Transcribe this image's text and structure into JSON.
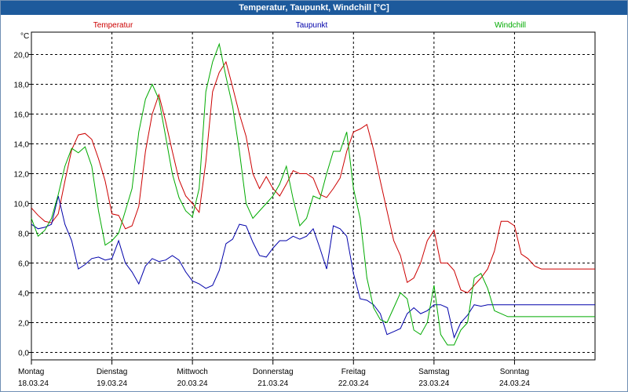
{
  "chart_data": {
    "type": "line",
    "title": "Temperatur, Taupunkt, Windchill [°C]",
    "ylabel": "°C",
    "xlabel": "",
    "ylim": [
      -0.5,
      21.5
    ],
    "yticks": [
      "0,0",
      "2,0",
      "4,0",
      "6,0",
      "8,0",
      "10,0",
      "12,0",
      "14,0",
      "16,0",
      "18,0",
      "20,0"
    ],
    "ytick_values": [
      0,
      2,
      4,
      6,
      8,
      10,
      12,
      14,
      16,
      18,
      20
    ],
    "xlim": [
      0,
      168
    ],
    "grid": true,
    "legend_position": "top",
    "days": [
      {
        "name": "Montag",
        "date": "18.03.24",
        "x": 0
      },
      {
        "name": "Dienstag",
        "date": "19.03.24",
        "x": 24
      },
      {
        "name": "Mittwoch",
        "date": "20.03.24",
        "x": 48
      },
      {
        "name": "Donnerstag",
        "date": "21.03.24",
        "x": 72
      },
      {
        "name": "Freitag",
        "date": "22.03.24",
        "x": 96
      },
      {
        "name": "Samstag",
        "date": "23.03.24",
        "x": 120
      },
      {
        "name": "Sonntag",
        "date": "24.03.24",
        "x": 144
      }
    ],
    "series": [
      {
        "name": "Temperatur",
        "color": "#cc0000",
        "x": [
          0,
          2,
          4,
          6,
          8,
          10,
          12,
          14,
          16,
          18,
          20,
          22,
          24,
          26,
          28,
          30,
          32,
          34,
          36,
          38,
          40,
          42,
          44,
          46,
          48,
          50,
          52,
          54,
          56,
          58,
          60,
          62,
          64,
          66,
          68,
          70,
          72,
          74,
          76,
          78,
          80,
          82,
          84,
          86,
          88,
          90,
          92,
          94,
          96,
          98,
          100,
          102,
          104,
          106,
          108,
          110,
          112,
          114,
          116,
          118,
          120,
          122,
          124,
          126,
          128,
          130,
          132,
          134,
          136,
          138,
          140,
          142,
          144,
          146,
          148,
          150,
          152,
          154,
          156,
          158,
          160,
          162,
          164,
          166,
          168
        ],
        "y": [
          9.7,
          9.2,
          8.8,
          8.7,
          9.3,
          11.5,
          13.6,
          14.6,
          14.7,
          14.3,
          13,
          11.5,
          9.3,
          9.2,
          8.3,
          8.5,
          9.8,
          13.5,
          16,
          17.3,
          15.5,
          13.5,
          11.6,
          10.5,
          10,
          9.4,
          12.8,
          17.5,
          18.8,
          19.5,
          17.8,
          16,
          14.5,
          12,
          11,
          11.8,
          11,
          10.5,
          11.3,
          12.2,
          12,
          12,
          11.7,
          10.6,
          10.4,
          11,
          11.7,
          13.5,
          14.8,
          15,
          15.3,
          13.6,
          11.5,
          9.5,
          7.5,
          6.5,
          4.7,
          5,
          6,
          7.5,
          8.2,
          6,
          6,
          5.5,
          4.2,
          4,
          4.5,
          5,
          5.6,
          6.8,
          8.8,
          8.8,
          8.5,
          6.6,
          6.3,
          5.8,
          5.6,
          5.6,
          5.6,
          5.6,
          5.6,
          5.6,
          5.6,
          5.6,
          5.6
        ]
      },
      {
        "name": "Taupunkt",
        "color": "#0000aa",
        "x": [
          0,
          2,
          4,
          6,
          8,
          10,
          12,
          14,
          16,
          18,
          20,
          22,
          24,
          26,
          28,
          30,
          32,
          34,
          36,
          38,
          40,
          42,
          44,
          46,
          48,
          50,
          52,
          54,
          56,
          58,
          60,
          62,
          64,
          66,
          68,
          70,
          72,
          74,
          76,
          78,
          80,
          82,
          84,
          86,
          88,
          90,
          92,
          94,
          96,
          98,
          100,
          102,
          104,
          106,
          108,
          110,
          112,
          114,
          116,
          118,
          120,
          122,
          124,
          126,
          128,
          130,
          132,
          134,
          136,
          138,
          140,
          142,
          144,
          146,
          148,
          150,
          152,
          154,
          156,
          158,
          160,
          162,
          164,
          166,
          168
        ],
        "y": [
          8.6,
          8.3,
          8.4,
          8.6,
          10.5,
          8.6,
          7.5,
          5.6,
          5.9,
          6.3,
          6.4,
          6.2,
          6.3,
          7.5,
          6,
          5.4,
          4.6,
          5.8,
          6.3,
          6.1,
          6.2,
          6.5,
          6.2,
          5.4,
          4.8,
          4.6,
          4.3,
          4.5,
          5.5,
          7.3,
          7.6,
          8.6,
          8.5,
          7.4,
          6.5,
          6.4,
          7,
          7.5,
          7.5,
          7.8,
          7.6,
          7.8,
          8.3,
          7,
          5.6,
          8.5,
          8.3,
          7.8,
          5.3,
          3.6,
          3.5,
          3.2,
          2.6,
          1.2,
          1.4,
          1.6,
          2.6,
          3,
          2.6,
          2.8,
          3.2,
          3.2,
          3,
          1,
          2,
          2.5,
          3.2,
          3.1,
          3.2,
          3.2,
          3.2,
          3.2,
          3.2,
          3.2,
          3.2,
          3.2,
          3.2,
          3.2,
          3.2,
          3.2,
          3.2,
          3.2,
          3.2,
          3.2,
          3.2
        ]
      },
      {
        "name": "Windchill",
        "color": "#00aa00",
        "x": [
          0,
          2,
          4,
          6,
          8,
          10,
          12,
          14,
          16,
          18,
          20,
          22,
          24,
          26,
          28,
          30,
          32,
          34,
          36,
          38,
          40,
          42,
          44,
          46,
          48,
          50,
          52,
          54,
          56,
          58,
          60,
          62,
          64,
          66,
          68,
          70,
          72,
          74,
          76,
          78,
          80,
          82,
          84,
          86,
          88,
          90,
          92,
          94,
          96,
          98,
          100,
          102,
          104,
          106,
          108,
          110,
          112,
          114,
          116,
          118,
          120,
          122,
          124,
          126,
          128,
          130,
          132,
          134,
          136,
          138,
          140,
          142,
          144,
          146,
          148,
          150,
          152,
          154,
          156,
          158,
          160,
          162,
          164,
          166,
          168
        ],
        "y": [
          9,
          7.8,
          8.2,
          9,
          10.6,
          12.5,
          13.7,
          13.4,
          13.8,
          12.5,
          9.5,
          7.2,
          7.5,
          8,
          9.5,
          11,
          14.8,
          17,
          18,
          17,
          14.5,
          12,
          10.4,
          9.5,
          9.1,
          11,
          17.5,
          19.5,
          20.7,
          18.5,
          16.5,
          13.5,
          10,
          9,
          9.5,
          10,
          10.5,
          11.3,
          12.5,
          10.3,
          8.5,
          9,
          10.5,
          10.3,
          12,
          13.5,
          13.5,
          14.8,
          11,
          9,
          5,
          3,
          2.2,
          2,
          3,
          4,
          3.6,
          1.5,
          1.2,
          2,
          4.5,
          1.2,
          0.5,
          0.5,
          1.5,
          2,
          5,
          5.3,
          4.3,
          2.8,
          2.6,
          2.4,
          2.4,
          2.4,
          2.4,
          2.4,
          2.4,
          2.4,
          2.4,
          2.4,
          2.4,
          2.4,
          2.4,
          2.4,
          2.4
        ]
      }
    ]
  }
}
